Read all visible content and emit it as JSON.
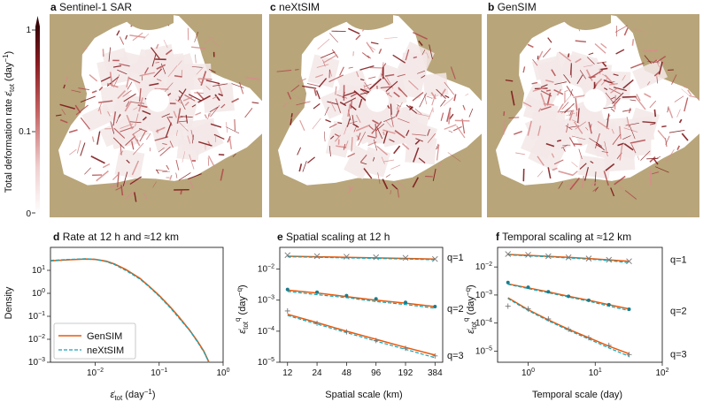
{
  "colors": {
    "land": "#b8a57a",
    "ice_low": "#f3e7e7",
    "ice_high": "#7a0f12",
    "gensim": "#e8590c",
    "nextsim": "#17a5b8",
    "gensim_mark": "#777777",
    "nextsim_mark": "#1c7c8c"
  },
  "maps": {
    "panels": [
      {
        "letter": "a",
        "title": "Sentinel-1 SAR",
        "seed": 11
      },
      {
        "letter": "c",
        "title": "neXtSIM",
        "seed": 23
      },
      {
        "letter": "b",
        "title": "GenSIM",
        "seed": 37
      }
    ],
    "colorbar": {
      "label": "Total deformation rate ε̇tot (day⁻¹)",
      "label_main": "Total deformation rate ",
      "label_sym": "ε̇",
      "label_sub": "tot",
      "label_unit": " (day",
      "label_exp": "−1",
      "label_close": ")",
      "ticks": [
        "1",
        "0.1",
        "0"
      ]
    }
  },
  "chart_data": [
    {
      "type": "line",
      "letter": "d",
      "title": "Rate at 12 h and ≈12 km",
      "xlabel_sym": "ε̇",
      "xlabel_sub": "tot",
      "xlabel_unit": " (day",
      "xlabel_exp": "−1",
      "xlabel_close": ")",
      "ylabel": "Density",
      "x_scale": "log",
      "y_scale": "log",
      "xlim": [
        0.002,
        1
      ],
      "ylim": [
        0.001,
        100
      ],
      "x_ticks": [
        {
          "v": 0.01,
          "b": "10",
          "e": "−2"
        },
        {
          "v": 0.1,
          "b": "10",
          "e": "−1"
        },
        {
          "v": 1,
          "b": "10",
          "e": "0"
        }
      ],
      "y_ticks": [
        {
          "v": 0.001,
          "b": "10",
          "e": "−3"
        },
        {
          "v": 0.01,
          "b": "10",
          "e": "−2"
        },
        {
          "v": 0.1,
          "b": "10",
          "e": "−1"
        },
        {
          "v": 1,
          "b": "10",
          "e": "0"
        },
        {
          "v": 10,
          "b": "10",
          "e": "1"
        }
      ],
      "legend": "bottom-left",
      "series": [
        {
          "name": "GenSIM",
          "style": "solid",
          "x": [
            0.002,
            0.004,
            0.007,
            0.01,
            0.015,
            0.02,
            0.03,
            0.05,
            0.07,
            0.1,
            0.15,
            0.2,
            0.3,
            0.4,
            0.5,
            0.6
          ],
          "y": [
            26,
            29,
            31,
            30,
            25,
            19,
            11,
            4.5,
            2.0,
            0.8,
            0.25,
            0.1,
            0.025,
            0.008,
            0.003,
            0.001
          ]
        },
        {
          "name": "neXtSIM",
          "style": "dashed",
          "x": [
            0.002,
            0.004,
            0.007,
            0.01,
            0.015,
            0.02,
            0.03,
            0.05,
            0.07,
            0.1,
            0.15,
            0.2,
            0.3,
            0.4,
            0.5,
            0.6
          ],
          "y": [
            27,
            30,
            32,
            30,
            24,
            18,
            10,
            4.2,
            1.9,
            0.75,
            0.23,
            0.09,
            0.024,
            0.0075,
            0.0028,
            0.001
          ]
        }
      ]
    },
    {
      "type": "line",
      "letter": "e",
      "title": "Spatial scaling at 12 h",
      "xlabel": "Spatial scale (km)",
      "x_scale": "log",
      "y_scale": "log",
      "xlim": [
        10,
        460
      ],
      "ylim": [
        1e-05,
        0.05
      ],
      "x_ticks": [
        {
          "v": 12,
          "label": "12"
        },
        {
          "v": 24,
          "label": "24"
        },
        {
          "v": 48,
          "label": "48"
        },
        {
          "v": 96,
          "label": "96"
        },
        {
          "v": 192,
          "label": "192"
        },
        {
          "v": 384,
          "label": "384"
        }
      ],
      "y_ticks": [
        {
          "v": 1e-05,
          "b": "10",
          "e": "−5"
        },
        {
          "v": 0.0001,
          "b": "10",
          "e": "−4"
        },
        {
          "v": 0.001,
          "b": "10",
          "e": "−3"
        },
        {
          "v": 0.01,
          "b": "10",
          "e": "−2"
        }
      ],
      "annotations": [
        "q=1",
        "q=2",
        "q=3"
      ],
      "series": [
        {
          "name": "GenSIM",
          "x": [
            12,
            24,
            48,
            96,
            192,
            384
          ],
          "q1": [
            0.026,
            0.025,
            0.024,
            0.023,
            0.022,
            0.021
          ],
          "q2": [
            0.0021,
            0.0017,
            0.0013,
            0.001,
            0.0008,
            0.00062
          ],
          "q3": [
            0.00035,
            0.00019,
            0.0001,
            5.5e-05,
            3e-05,
            1.7e-05
          ]
        },
        {
          "name": "neXtSIM",
          "x": [
            12,
            24,
            48,
            96,
            192,
            384
          ],
          "q1": [
            0.025,
            0.024,
            0.023,
            0.022,
            0.021,
            0.02
          ],
          "q2": [
            0.0019,
            0.0015,
            0.0012,
            0.0009,
            0.00072,
            0.00055
          ],
          "q3": [
            0.00032,
            0.00017,
            9e-05,
            4.8e-05,
            2.6e-05,
            1.4e-05
          ]
        }
      ],
      "marks_q1": [
        0.028,
        0.026,
        0.025,
        0.024,
        0.023,
        0.021
      ],
      "marks_q2": [
        0.0022,
        0.0018,
        0.0014,
        0.0011,
        0.00085,
        0.00062
      ],
      "marks_q3": [
        0.00045,
        0.00018,
        9.5e-05,
        5e-05,
        2.8e-05,
        1.6e-05
      ]
    },
    {
      "type": "line",
      "letter": "f",
      "title": "Temporal scaling at ≈12 km",
      "xlabel": "Temporal scale (day)",
      "x_scale": "log",
      "y_scale": "log",
      "xlim": [
        0.35,
        100
      ],
      "ylim": [
        4e-06,
        0.05
      ],
      "x_ticks": [
        {
          "v": 1,
          "b": "10",
          "e": "0"
        },
        {
          "v": 10,
          "b": "10",
          "e": "1"
        },
        {
          "v": 100,
          "b": "10",
          "e": "2"
        }
      ],
      "y_ticks": [
        {
          "v": 1e-05,
          "b": "10",
          "e": "−5"
        },
        {
          "v": 0.0001,
          "b": "10",
          "e": "−4"
        },
        {
          "v": 0.001,
          "b": "10",
          "e": "−3"
        },
        {
          "v": 0.01,
          "b": "10",
          "e": "−2"
        }
      ],
      "annotations": [
        "q=1",
        "q=2",
        "q=3"
      ],
      "series": [
        {
          "name": "GenSIM",
          "x": [
            0.5,
            1,
            2,
            4,
            8,
            16,
            32
          ],
          "q1": [
            0.028,
            0.026,
            0.024,
            0.022,
            0.02,
            0.018,
            0.016
          ],
          "q2": [
            0.0025,
            0.0018,
            0.0013,
            0.0009,
            0.00065,
            0.00045,
            0.00032
          ],
          "q3": [
            0.0008,
            0.0003,
            0.00013,
            6e-05,
            3e-05,
            1.5e-05,
            8e-06
          ]
        },
        {
          "name": "neXtSIM",
          "x": [
            0.5,
            1,
            2,
            4,
            8,
            16,
            32
          ],
          "q1": [
            0.027,
            0.025,
            0.023,
            0.021,
            0.019,
            0.017,
            0.014
          ],
          "q2": [
            0.0024,
            0.0017,
            0.0012,
            0.00085,
            0.0006,
            0.0004,
            0.00028
          ],
          "q3": [
            0.00075,
            0.00028,
            0.00012,
            5.5e-05,
            2.7e-05,
            1.3e-05,
            6.5e-06
          ]
        }
      ],
      "marks_q1": [
        0.029,
        0.027,
        0.024,
        0.022,
        0.02,
        0.018,
        0.016
      ],
      "marks_q2": [
        0.0028,
        0.0019,
        0.0013,
        0.0009,
        0.00065,
        0.00045,
        0.00031
      ],
      "marks_q3": [
        0.0004,
        0.00032,
        0.00014,
        6e-05,
        3e-05,
        1.6e-05,
        7.5e-06
      ]
    }
  ]
}
